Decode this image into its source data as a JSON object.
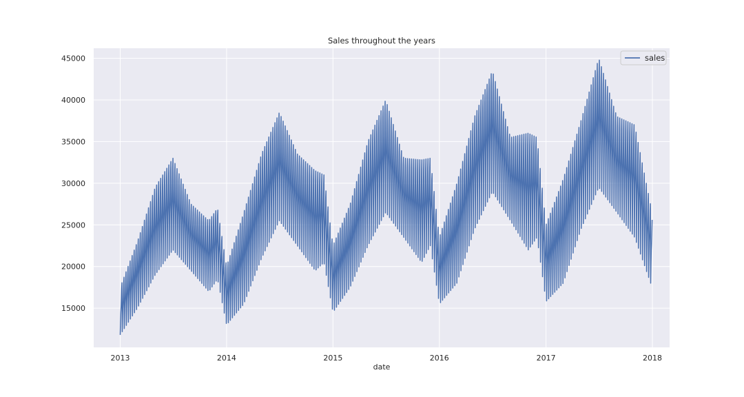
{
  "chart_data": {
    "type": "line",
    "title": "Sales throughout the years",
    "xlabel": "date",
    "ylabel": "",
    "xlim": [
      "2012-10-02",
      "2018-03-01"
    ],
    "ylim": [
      10300,
      46200
    ],
    "x_ticks": [
      "2013",
      "2014",
      "2015",
      "2016",
      "2017",
      "2018"
    ],
    "y_ticks": [
      15000,
      20000,
      25000,
      30000,
      35000,
      40000,
      45000
    ],
    "grid": true,
    "legend_position": "top-right",
    "colors": {
      "series": "#4c72b0",
      "plot_background": "#eaeaf2",
      "grid": "#ffffff"
    },
    "series": [
      {
        "name": "sales",
        "x_start": "2013-01-01",
        "x_end": "2017-12-31",
        "frequency": "daily",
        "weekly_range_note": "values oscillate weekly between a low and a high envelope",
        "envelope_dates": [
          "2013-01-01",
          "2013-03-01",
          "2013-05-01",
          "2013-07-01",
          "2013-09-01",
          "2013-11-01",
          "2013-12-01",
          "2014-01-01",
          "2014-03-01",
          "2014-05-01",
          "2014-07-01",
          "2014-09-01",
          "2014-11-01",
          "2014-12-01",
          "2015-01-01",
          "2015-03-01",
          "2015-05-01",
          "2015-07-01",
          "2015-09-01",
          "2015-11-01",
          "2015-12-01",
          "2016-01-01",
          "2016-03-01",
          "2016-05-01",
          "2016-07-01",
          "2016-09-01",
          "2016-11-01",
          "2016-12-01",
          "2017-01-01",
          "2017-03-01",
          "2017-05-01",
          "2017-07-01",
          "2017-09-01",
          "2017-11-01",
          "2017-12-31"
        ],
        "envelope_low": [
          11800,
          15000,
          19000,
          22000,
          19500,
          17000,
          18500,
          13000,
          15500,
          21000,
          25500,
          22500,
          19500,
          20500,
          14500,
          17500,
          22500,
          26500,
          23500,
          20500,
          22500,
          15500,
          18000,
          24500,
          29000,
          25500,
          22000,
          23500,
          15800,
          18000,
          24500,
          29500,
          26500,
          23500,
          17500
        ],
        "envelope_high": [
          17500,
          23000,
          29500,
          33000,
          27500,
          25500,
          27000,
          20000,
          26500,
          33500,
          38500,
          33500,
          31500,
          31000,
          22500,
          27500,
          35000,
          40000,
          33000,
          32800,
          33000,
          23500,
          30000,
          38000,
          43500,
          35500,
          36000,
          35500,
          25000,
          30500,
          37500,
          45000,
          38000,
          37000,
          26500
        ]
      }
    ]
  }
}
